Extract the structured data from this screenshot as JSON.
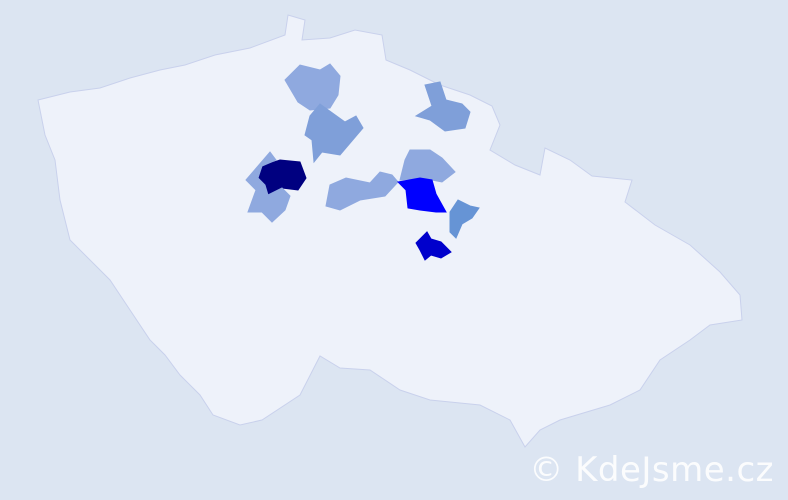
{
  "watermark": "© KdeJsme.cz",
  "colors": {
    "background": "#dce5f2",
    "country_fill": "#eef2fa",
    "border": "#c9d1ec",
    "level_1": "#8fa9df",
    "level_2": "#7f9fd9",
    "level_3": "#6694d5",
    "level_4": "#0000ff",
    "level_5": "#0000cc",
    "level_6": "#000080"
  },
  "highlighted_districts": [
    {
      "level": "level_6"
    },
    {
      "level": "level_1"
    },
    {
      "level": "level_1"
    },
    {
      "level": "level_2"
    },
    {
      "level": "level_1"
    },
    {
      "level": "level_2"
    },
    {
      "level": "level_1"
    },
    {
      "level": "level_4"
    },
    {
      "level": "level_3"
    },
    {
      "level": "level_5"
    }
  ]
}
